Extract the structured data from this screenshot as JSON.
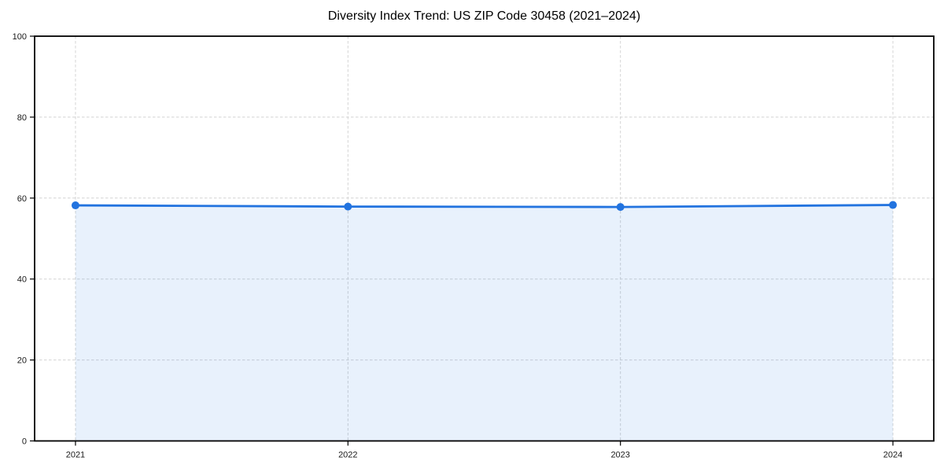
{
  "figure": {
    "background": "#ffffff"
  },
  "chart_data": {
    "type": "line",
    "title": "Diversity Index Trend: US ZIP Code 30458 (2021–2024)",
    "categories": [
      "2021",
      "2022",
      "2023",
      "2024"
    ],
    "series": [
      {
        "name": "Diversity Index",
        "values": [
          58.2,
          57.9,
          57.8,
          58.3
        ]
      }
    ],
    "xlabel": "",
    "ylabel": "",
    "ylim": [
      0,
      100
    ],
    "yticks": [
      0,
      20,
      40,
      60,
      80,
      100
    ],
    "grid": "dashed, both axes",
    "legend_position": "none",
    "marker": "circle",
    "area_fill": true,
    "colors": {
      "line": "#2273df",
      "area_fill_opacity": 0.1,
      "grid": "#d4d4d4",
      "axis": "#000000",
      "tick_label": "#1a1a1a",
      "title": "#000000"
    }
  }
}
